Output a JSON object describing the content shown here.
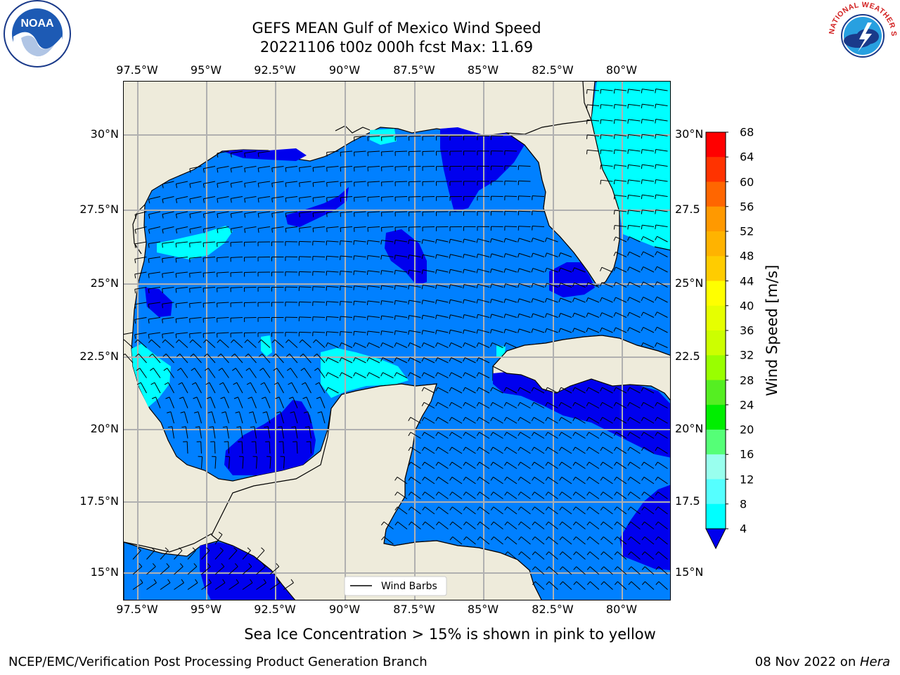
{
  "title": {
    "line1": "GEFS MEAN Gulf of Mexico Wind Speed",
    "line2": "20221106 t00z 000h fcst   Max: 11.69"
  },
  "logos": {
    "noaa_text": "NOAA",
    "nws_text": "NATIONAL WEATHER SERVICE"
  },
  "axes": {
    "lon_labels": [
      "97.5°W",
      "95°W",
      "92.5°W",
      "90°W",
      "87.5°W",
      "85°W",
      "82.5°W",
      "80°W"
    ],
    "lat_labels_left": [
      "30°N",
      "27.5°N",
      "25°N",
      "22.5°N",
      "20°N",
      "17.5°N",
      "15°N"
    ],
    "lat_labels_right": [
      "30°N",
      "27.5",
      "25°N",
      "22.5",
      "20°N",
      "17.5",
      "15°N"
    ]
  },
  "legend": {
    "label": "Wind Barbs"
  },
  "colorbar": {
    "title": "Wind Speed [m/s]",
    "ticks": [
      "68",
      "64",
      "60",
      "56",
      "52",
      "48",
      "44",
      "40",
      "36",
      "32",
      "28",
      "24",
      "20",
      "16",
      "12",
      "8",
      "4"
    ],
    "colors": [
      "#ff0000",
      "#ff3300",
      "#ff6600",
      "#ff9900",
      "#ffb300",
      "#ffcc00",
      "#ffff00",
      "#e6ff00",
      "#ccff00",
      "#99ff00",
      "#55ee22",
      "#00ee00",
      "#55ff77",
      "#99ffee",
      "#55ffff",
      "#00ffff",
      "#0080ff"
    ],
    "extend_color": "#0000ee"
  },
  "palette": {
    "land": "#eeebdb",
    "water_4_8": "#0080ff",
    "water_below_4": "#0000ee",
    "water_8_12": "#00ffff",
    "grid": "#b0b0b0"
  },
  "note": "Sea Ice Concentration > 15% is shown in pink to yellow",
  "footer": {
    "left": "NCEP/EMC/Verification Post Processing Product Generation Branch",
    "right_date": "08 Nov 2022 on ",
    "right_host": "Hera"
  }
}
